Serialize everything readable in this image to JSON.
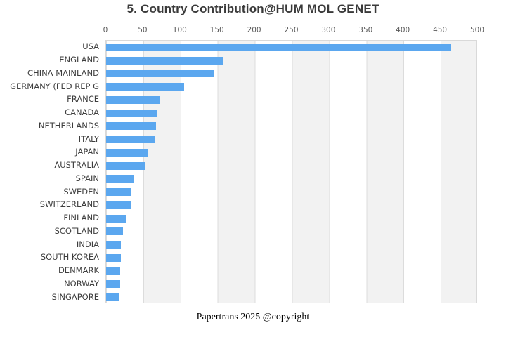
{
  "chart_data": {
    "type": "bar",
    "orientation": "horizontal",
    "title": "5. Country Contribution@HUM MOL GENET",
    "categories": [
      "USA",
      "ENGLAND",
      "CHINA MAINLAND",
      "GERMANY (FED REP G",
      "FRANCE",
      "CANADA",
      "NETHERLANDS",
      "ITALY",
      "JAPAN",
      "AUSTRALIA",
      "SPAIN",
      "SWEDEN",
      "SWITZERLAND",
      "FINLAND",
      "SCOTLAND",
      "INDIA",
      "SOUTH KOREA",
      "DENMARK",
      "NORWAY",
      "SINGAPORE"
    ],
    "values": [
      464,
      157,
      146,
      105,
      73,
      68,
      67,
      66,
      57,
      53,
      37,
      34,
      33,
      26,
      23,
      20,
      20,
      19,
      19,
      18
    ],
    "xlabel": "",
    "ylabel": "",
    "xlim": [
      0,
      500
    ],
    "x_ticks": [
      0,
      50,
      100,
      150,
      200,
      250,
      300,
      350,
      400,
      450,
      500
    ],
    "x_axis_position": "top",
    "grid": "alternating-vertical-bands-every-50",
    "legend": "none",
    "bar_color": "#5ba7ef",
    "band_color": "#f2f2f2",
    "tick_color": "#595959",
    "label_color": "#3d3d3d",
    "title_color": "#3a3a3a"
  },
  "footer": {
    "text": "Papertrans 2025 @copyright"
  }
}
